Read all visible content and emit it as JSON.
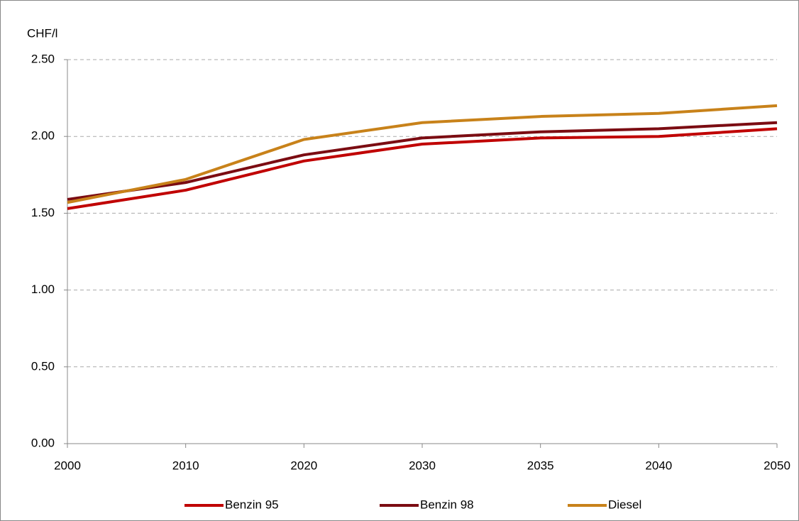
{
  "chart_data": {
    "type": "line",
    "y_label": "CHF/l",
    "categories": [
      "2000",
      "2010",
      "2020",
      "2030",
      "2035",
      "2040",
      "2050"
    ],
    "series": [
      {
        "name": "Benzin 95",
        "color": "#c00000",
        "values": [
          1.53,
          1.65,
          1.84,
          1.95,
          1.99,
          2.0,
          2.05
        ]
      },
      {
        "name": "Benzin 98",
        "color": "#7b0c12",
        "values": [
          1.59,
          1.7,
          1.88,
          1.99,
          2.03,
          2.05,
          2.09
        ]
      },
      {
        "name": "Diesel",
        "color": "#c8821a",
        "values": [
          1.57,
          1.72,
          1.98,
          2.09,
          2.13,
          2.15,
          2.2
        ]
      }
    ],
    "ylim": [
      0,
      2.5
    ],
    "yticks": [
      {
        "value": 0,
        "label": "0.00"
      },
      {
        "value": 0.5,
        "label": "0.50"
      },
      {
        "value": 1,
        "label": "1.00"
      },
      {
        "value": 1.5,
        "label": "1.50"
      },
      {
        "value": 2,
        "label": "2.00"
      },
      {
        "value": 2.5,
        "label": "2.50"
      }
    ],
    "grid": true,
    "legend": "bottom"
  }
}
